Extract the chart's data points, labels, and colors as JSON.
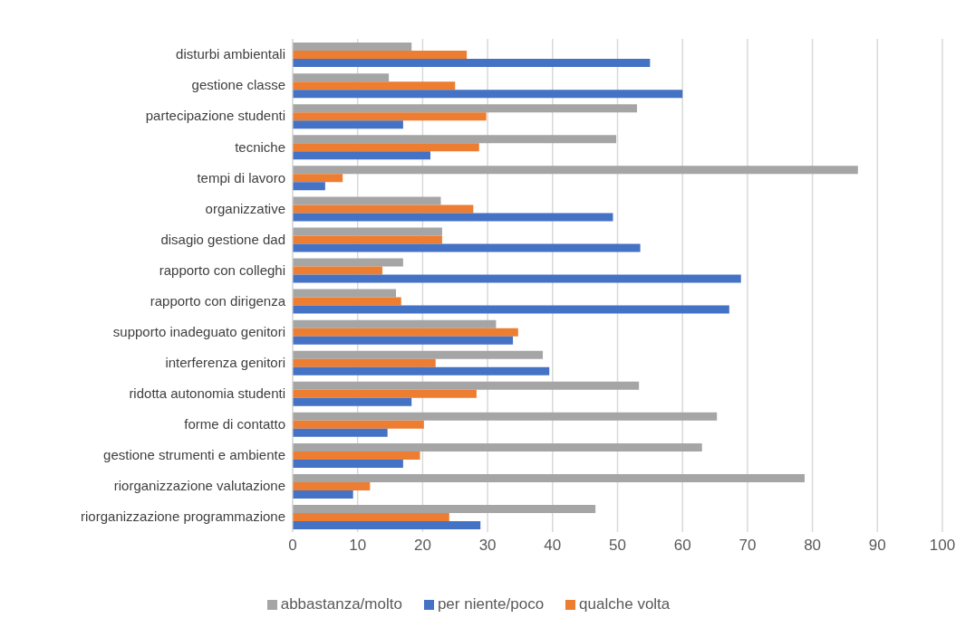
{
  "chart_data": {
    "type": "bar",
    "orientation": "horizontal",
    "categories": [
      "disturbi ambientali",
      "gestione classe",
      "partecipazione studenti",
      "tecniche",
      "tempi di lavoro",
      "organizzative",
      "disagio gestione dad",
      "rapporto con colleghi",
      "rapporto con dirigenza",
      "supporto inadeguato genitori",
      "interferenza genitori",
      "ridotta autonomia studenti",
      "forme di contatto",
      "gestione strumenti e ambiente",
      "riorganizzazione valutazione",
      "riorganizzazione programmazione"
    ],
    "series": [
      {
        "name": "abbastanza/molto",
        "color": "#a5a5a5",
        "values": [
          18.3,
          14.8,
          53,
          49.8,
          87,
          22.8,
          23,
          17,
          15.9,
          31.3,
          38.5,
          53.3,
          65.3,
          63,
          78.8,
          46.6
        ]
      },
      {
        "name": "qualche volta",
        "color": "#ed7d31",
        "values": [
          26.8,
          25,
          29.8,
          28.7,
          7.7,
          27.8,
          23,
          13.8,
          16.7,
          34.7,
          22,
          28.3,
          20.2,
          19.6,
          11.9,
          24.1
        ]
      },
      {
        "name": "per niente/poco",
        "color": "#4472c4",
        "values": [
          55,
          60,
          17,
          21.2,
          5,
          49.3,
          53.5,
          69,
          67.2,
          33.9,
          39.5,
          18.3,
          14.6,
          17,
          9.3,
          28.9
        ]
      }
    ],
    "xlim": [
      0,
      100
    ],
    "xticks": [
      0,
      10,
      20,
      30,
      40,
      50,
      60,
      70,
      80,
      90,
      100
    ],
    "grid": "x",
    "legend": "bottom"
  }
}
